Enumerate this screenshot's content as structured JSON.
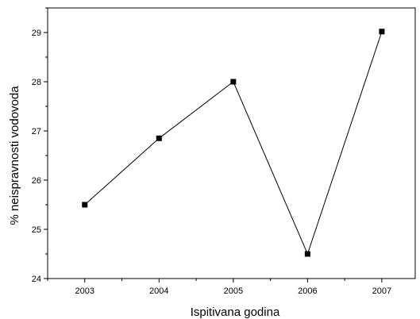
{
  "chart_data": {
    "type": "line",
    "title": "",
    "xlabel": "Ispitivana godina",
    "ylabel": "% neispravnosti vodovoda",
    "x": [
      2003,
      2004,
      2005,
      2006,
      2007
    ],
    "series": [
      {
        "values": [
          25.5,
          26.85,
          28.0,
          24.5,
          29.02
        ]
      }
    ],
    "x_ticks": [
      "2003",
      "2004",
      "2005",
      "2006",
      "2007"
    ],
    "y_ticks": [
      "24",
      "25",
      "26",
      "27",
      "28",
      "29"
    ],
    "xlim": [
      2002.5,
      2007.45
    ],
    "ylim": [
      24,
      29.5
    ],
    "marker": "square",
    "line_color": "#000000",
    "grid": false,
    "legend": "none"
  }
}
